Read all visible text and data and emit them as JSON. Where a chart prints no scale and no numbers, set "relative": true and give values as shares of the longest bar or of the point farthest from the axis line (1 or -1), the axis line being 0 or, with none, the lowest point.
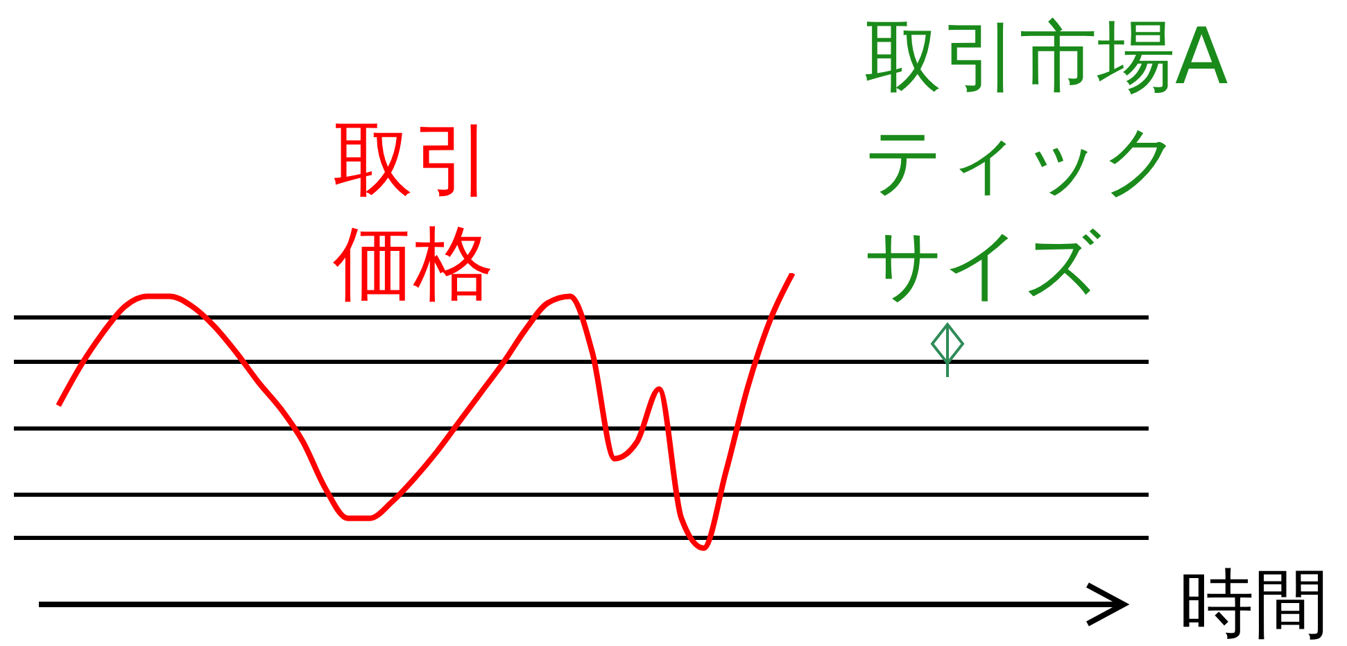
{
  "chart_data": {
    "type": "line",
    "relative": true,
    "xlabel": "時間",
    "line_style": "solid",
    "marker": "none",
    "categories": [
      null,
      null,
      null,
      null,
      null,
      null,
      null,
      null,
      null,
      null,
      null,
      null,
      null,
      null,
      null,
      null,
      null,
      null,
      null,
      null,
      null,
      null,
      null,
      null,
      null,
      null,
      null,
      null,
      null,
      null,
      null,
      null,
      null,
      null,
      null,
      null,
      null,
      null,
      null,
      null,
      null,
      null,
      null,
      null,
      null,
      null,
      null,
      null,
      null,
      null
    ],
    "series": [
      {
        "name": "取引価格",
        "color": "#ff0000",
        "values": [
          0.6,
          0.72,
          0.82,
          0.9,
          0.93,
          0.93,
          0.9,
          0.84,
          0.76,
          0.67,
          0.59,
          0.49,
          0.35,
          0.26,
          0.26,
          0.31,
          0.38,
          0.46,
          0.55,
          0.64,
          0.73,
          0.83,
          0.91,
          0.93,
          0.76,
          0.44,
          0.49,
          0.65,
          0.26,
          0.17,
          0.4,
          0.66,
          0.86,
          1,
          null,
          null,
          null,
          null,
          null,
          null,
          null,
          null,
          null,
          null,
          null,
          null,
          null,
          null,
          null,
          null
        ]
      }
    ],
    "ref_lines": [
      {
        "axis": "y",
        "value": 0.866,
        "color": "#000000"
      },
      {
        "axis": "y",
        "value": 0.732,
        "color": "#000000"
      },
      {
        "axis": "y",
        "value": 0.531,
        "color": "#000000"
      },
      {
        "axis": "y",
        "value": 0.331,
        "color": "#000000"
      },
      {
        "axis": "y",
        "value": 0.201,
        "color": "#000000"
      }
    ],
    "annotations": [
      "取引市場Aティックサイズ"
    ]
  }
}
